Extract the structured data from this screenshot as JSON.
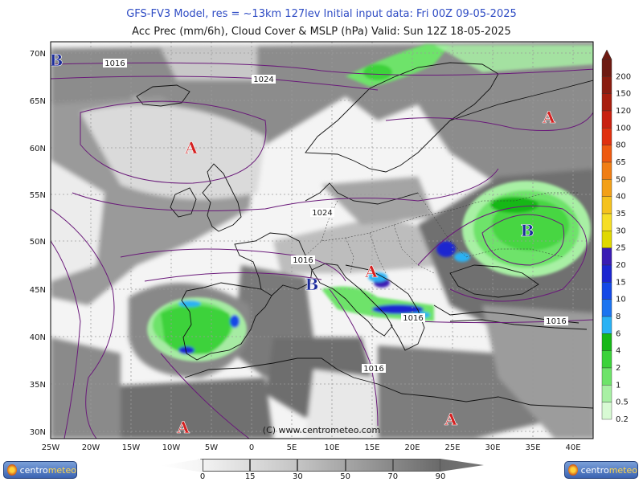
{
  "header": {
    "line1": "GFS-FV3 Model, res = ~13km 127lev    Initial input data: Fri 00Z 09-05-2025",
    "line2": "Acc Prec (mm/6h), Cloud Cover & MSLP (hPa)   Valid: Sun 12Z 18-05-2025"
  },
  "copyright": "(C) www.centrometeo.com",
  "lon_labels": [
    "25W",
    "20W",
    "15W",
    "10W",
    "5W",
    "0",
    "5E",
    "10E",
    "15E",
    "20E",
    "25E",
    "30E",
    "35E",
    "40E"
  ],
  "lat_labels": [
    "70N",
    "65N",
    "60N",
    "55N",
    "50N",
    "45N",
    "40N",
    "35N",
    "30N"
  ],
  "isobar_labels": [
    "1016",
    "1024",
    "1024",
    "1016",
    "1016",
    "1016",
    "1016"
  ],
  "pressure_centers": [
    {
      "type": "B",
      "label": "B"
    },
    {
      "type": "A",
      "label": "A"
    },
    {
      "type": "A",
      "label": "A"
    },
    {
      "type": "B",
      "label": "B"
    },
    {
      "type": "A",
      "label": "A"
    },
    {
      "type": "B",
      "label": "B"
    },
    {
      "type": "A",
      "label": "A"
    },
    {
      "type": "A",
      "label": "A"
    }
  ],
  "precip_scale": {
    "labels": [
      "200",
      "150",
      "120",
      "100",
      "80",
      "65",
      "50",
      "40",
      "35",
      "30",
      "25",
      "20",
      "15",
      "10",
      "8",
      "6",
      "4",
      "2",
      "1",
      "0.5",
      "0.2"
    ],
    "colors": [
      "#6e1a12",
      "#8a1c10",
      "#a81e0e",
      "#c82010",
      "#e0300e",
      "#ee5a10",
      "#f07e14",
      "#f3a018",
      "#f5c21e",
      "#f6de26",
      "#e0d800",
      "#3a1cb4",
      "#1c26d0",
      "#1448e6",
      "#1c74f0",
      "#2ab2f4",
      "#16b818",
      "#3cd23a",
      "#6ee36a",
      "#a8f0a4",
      "#d8fad4"
    ]
  },
  "cloud_scale": {
    "labels": [
      "0",
      "15",
      "30",
      "50",
      "70",
      "90"
    ],
    "colors": [
      "#f2f2f2",
      "#dcdcdc",
      "#c4c4c4",
      "#a6a6a6",
      "#888888",
      "#6a6a6a"
    ]
  },
  "logos": {
    "left": {
      "a": "centro",
      "b": "meteo"
    },
    "right": {
      "a": "centro",
      "b": "meteo"
    }
  }
}
